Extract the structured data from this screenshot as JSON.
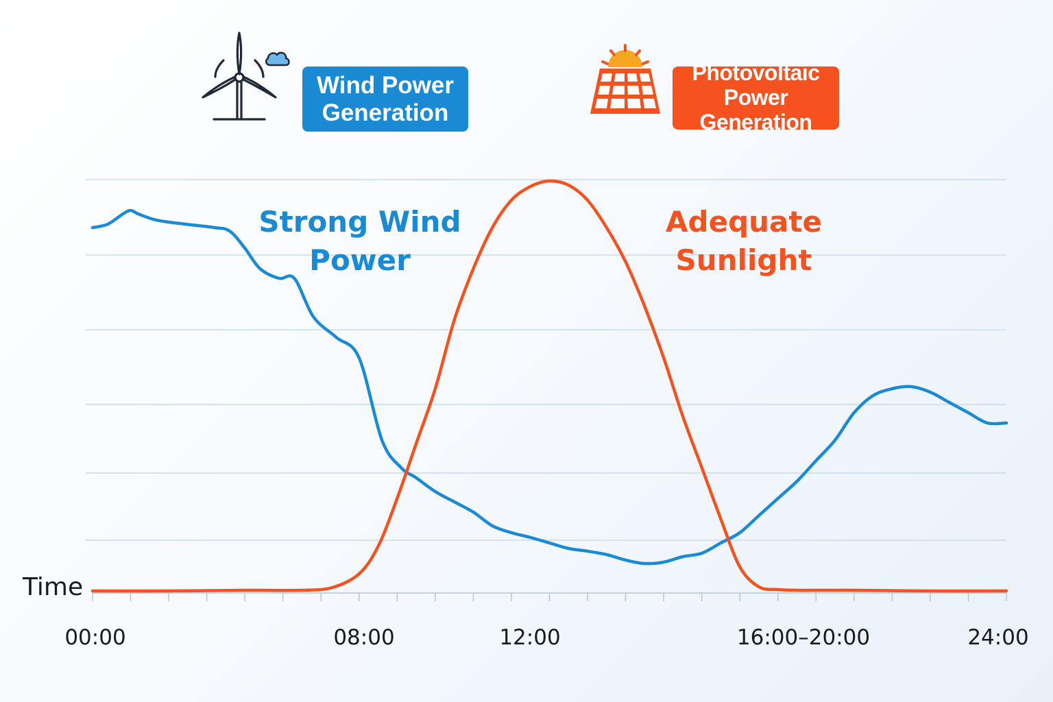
{
  "colors": {
    "wind": "#1a8ad4",
    "solar": "#f5521f",
    "grid": "#c8dcea",
    "axis": "#b8c6d2",
    "icon_dark": "#1f2937",
    "cloud": "#6fb8ec",
    "sun": "#f5a623"
  },
  "legend": {
    "wind": {
      "line1": "Wind Power",
      "line2": "Generation",
      "icon": "wind-turbine-icon"
    },
    "solar": {
      "line1": "Photovoltaic",
      "line2": "Power Generation",
      "icon": "solar-panel-icon"
    }
  },
  "annotations": {
    "wind": {
      "line1": "Strong Wind",
      "line2": "Power"
    },
    "solar": {
      "line1": "Adequate",
      "line2": "Sunlight"
    }
  },
  "chart_data": {
    "type": "line",
    "xlabel": "Time",
    "ylabel": "",
    "xlim": [
      0,
      24
    ],
    "ylim": [
      0,
      6
    ],
    "grid": true,
    "legend_position": "top",
    "tick_labels": [
      {
        "x": 0,
        "label": "00:00"
      },
      {
        "x": 8,
        "label": "08:00"
      },
      {
        "x": 12,
        "label": "12:00"
      },
      {
        "x": 18,
        "label": "16:00–20:00"
      },
      {
        "x": 24,
        "label": "24:00"
      }
    ],
    "series": [
      {
        "name": "Wind Power Generation",
        "color": "#1a8ad4",
        "x": [
          0,
          0.4,
          0.8,
          1.0,
          1.2,
          1.6,
          2.0,
          2.6,
          3.2,
          3.6,
          4.0,
          4.4,
          4.9,
          5.3,
          5.8,
          6.4,
          7.0,
          7.6,
          8.1,
          8.5,
          9.0,
          9.5,
          10.0,
          10.5,
          11.0,
          11.5,
          12.0,
          12.5,
          13.0,
          13.5,
          14.0,
          14.5,
          15.0,
          15.5,
          16.0,
          16.5,
          17.0,
          17.5,
          18.0,
          18.5,
          19.0,
          19.5,
          20.0,
          20.5,
          21.0,
          21.5,
          22.0,
          22.5,
          23.0,
          23.5,
          24.0
        ],
        "values": [
          5.3,
          5.35,
          5.5,
          5.55,
          5.5,
          5.42,
          5.38,
          5.34,
          5.3,
          5.25,
          5.0,
          4.7,
          4.56,
          4.56,
          4.0,
          3.7,
          3.4,
          2.2,
          1.8,
          1.65,
          1.45,
          1.3,
          1.15,
          0.95,
          0.85,
          0.78,
          0.7,
          0.62,
          0.58,
          0.53,
          0.45,
          0.4,
          0.42,
          0.5,
          0.55,
          0.7,
          0.85,
          1.1,
          1.35,
          1.6,
          1.9,
          2.2,
          2.6,
          2.85,
          2.95,
          2.98,
          2.9,
          2.75,
          2.6,
          2.45,
          2.45
        ]
      },
      {
        "name": "Photovoltaic Power Generation",
        "color": "#f5521f",
        "x": [
          0,
          2,
          4,
          5.5,
          6.3,
          7.0,
          7.5,
          8.0,
          8.5,
          9.0,
          9.5,
          10.0,
          10.5,
          11.0,
          11.5,
          12.0,
          12.5,
          13.0,
          13.5,
          14.0,
          14.5,
          15.0,
          15.5,
          16.0,
          16.5,
          17.0,
          17.5,
          18.0,
          18.5,
          19.0,
          19.5,
          20.0,
          22.0,
          24.0
        ],
        "values": [
          0.0,
          0.0,
          0.01,
          0.01,
          0.05,
          0.25,
          0.65,
          1.35,
          2.15,
          2.95,
          3.95,
          4.7,
          5.3,
          5.7,
          5.9,
          5.98,
          5.92,
          5.7,
          5.3,
          4.8,
          4.15,
          3.4,
          2.55,
          1.8,
          1.05,
          0.35,
          0.06,
          0.02,
          0.01,
          0.01,
          0.01,
          0.01,
          0.0,
          0.0
        ]
      }
    ]
  }
}
